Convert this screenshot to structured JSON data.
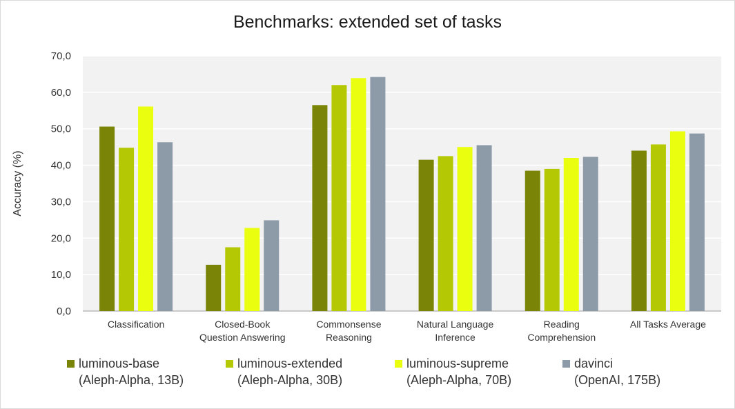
{
  "chart_data": {
    "type": "bar",
    "title": "Benchmarks: extended set of tasks",
    "xlabel": "",
    "ylabel": "Accuracy (%)",
    "ylim": [
      0,
      70
    ],
    "yticks": [
      "0,0",
      "10,0",
      "20,0",
      "30,0",
      "40,0",
      "50,0",
      "60,0",
      "70,0"
    ],
    "grid": true,
    "categories": [
      [
        "Classification"
      ],
      [
        "Closed-Book",
        "Question Answering"
      ],
      [
        "Commonsense",
        "Reasoning"
      ],
      [
        "Natural Language",
        "Inference"
      ],
      [
        "Reading",
        "Comprehension"
      ],
      [
        "All Tasks Average"
      ]
    ],
    "series": [
      {
        "name": "luminous-base",
        "detail": "(Aleph-Alpha, 13B)",
        "color": "#7a8406",
        "values": [
          50.6,
          12.7,
          56.5,
          41.5,
          38.5,
          44.0
        ]
      },
      {
        "name": "luminous-extended",
        "detail": "(Aleph-Alpha, 30B)",
        "color": "#b4c904",
        "values": [
          44.8,
          17.5,
          62.0,
          42.5,
          39.0,
          45.7
        ]
      },
      {
        "name": "luminous-supreme",
        "detail": "(Aleph-Alpha, 70B)",
        "color": "#eaff0f",
        "values": [
          56.1,
          22.8,
          63.9,
          45.0,
          42.0,
          49.3
        ]
      },
      {
        "name": "davinci",
        "detail": "(OpenAI, 175B)",
        "color": "#8d9ba9",
        "values": [
          46.3,
          24.9,
          64.2,
          45.5,
          42.3,
          48.7
        ]
      }
    ],
    "legend_position": "bottom"
  }
}
